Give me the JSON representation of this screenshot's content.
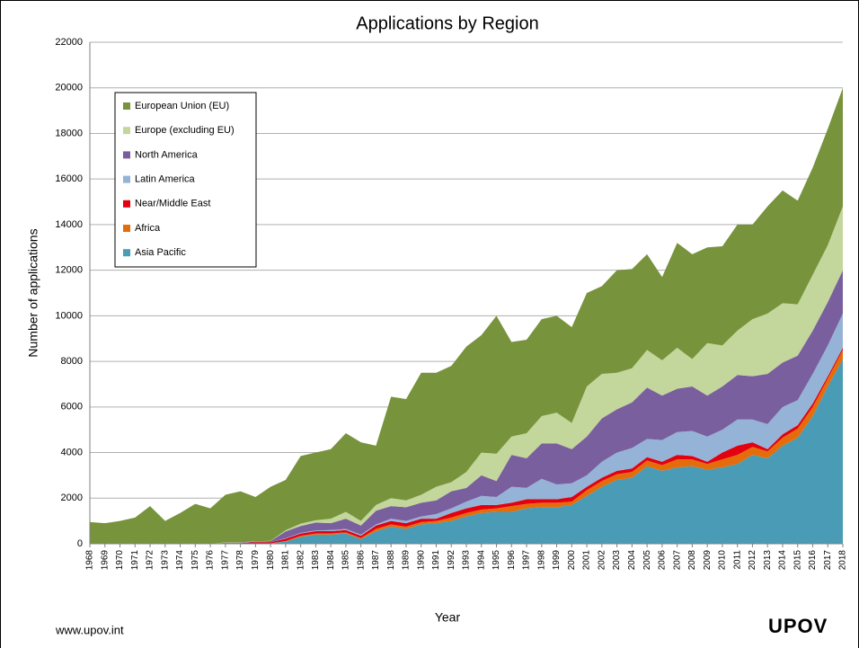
{
  "chart_data": {
    "type": "stacked_area",
    "title": "Applications by Region",
    "x_label": "Year",
    "y_label": "Number of applications",
    "x": [
      1968,
      1969,
      1970,
      1971,
      1972,
      1973,
      1974,
      1975,
      1976,
      1977,
      1978,
      1979,
      1980,
      1981,
      1982,
      1983,
      1984,
      1985,
      1986,
      1987,
      1988,
      1989,
      1990,
      1991,
      1992,
      1993,
      1994,
      1995,
      1996,
      1997,
      1998,
      1999,
      2000,
      2001,
      2002,
      2003,
      2004,
      2005,
      2006,
      2007,
      2008,
      2009,
      2010,
      2011,
      2012,
      2013,
      2014,
      2015,
      2016,
      2017,
      2018
    ],
    "xlim": [
      1968,
      2018
    ],
    "ylim": [
      0,
      22000
    ],
    "yticks": [
      0,
      2000,
      4000,
      6000,
      8000,
      10000,
      12000,
      14000,
      16000,
      18000,
      20000,
      22000
    ],
    "grid": true,
    "legend": "upper left",
    "series": [
      {
        "name": "Asia Pacific",
        "color": "#4a9bb5",
        "values": [
          0,
          0,
          0,
          0,
          0,
          0,
          0,
          0,
          0,
          20,
          20,
          20,
          20,
          100,
          300,
          400,
          400,
          450,
          200,
          550,
          750,
          650,
          850,
          900,
          1000,
          1200,
          1350,
          1400,
          1400,
          1550,
          1600,
          1600,
          1700,
          2100,
          2500,
          2800,
          2900,
          3400,
          3200,
          3350,
          3400,
          3250,
          3350,
          3500,
          3900,
          3750,
          4300,
          4650,
          5600,
          6900,
          8100
        ]
      },
      {
        "name": "Africa",
        "color": "#e46c0a",
        "values": [
          0,
          0,
          0,
          0,
          0,
          0,
          0,
          0,
          0,
          0,
          0,
          0,
          0,
          20,
          50,
          50,
          50,
          50,
          50,
          100,
          100,
          100,
          100,
          100,
          150,
          150,
          150,
          150,
          250,
          200,
          200,
          200,
          150,
          250,
          250,
          250,
          250,
          250,
          250,
          350,
          300,
          250,
          350,
          400,
          350,
          300,
          350,
          400,
          400,
          350,
          400
        ]
      },
      {
        "name": "Near/Middle East",
        "color": "#e3000f",
        "values": [
          0,
          0,
          0,
          0,
          0,
          0,
          0,
          0,
          0,
          10,
          10,
          50,
          50,
          100,
          100,
          100,
          100,
          100,
          100,
          150,
          150,
          150,
          150,
          100,
          200,
          200,
          200,
          150,
          150,
          200,
          150,
          150,
          200,
          150,
          150,
          150,
          150,
          150,
          150,
          200,
          150,
          100,
          300,
          400,
          200,
          100,
          150,
          150,
          150,
          100,
          100
        ]
      },
      {
        "name": "Latin America",
        "color": "#95b3d7",
        "values": [
          0,
          0,
          0,
          0,
          0,
          0,
          0,
          0,
          0,
          0,
          0,
          0,
          0,
          20,
          30,
          30,
          50,
          50,
          50,
          50,
          100,
          100,
          100,
          200,
          200,
          300,
          400,
          350,
          700,
          500,
          900,
          650,
          600,
          500,
          700,
          800,
          900,
          800,
          950,
          1000,
          1100,
          1100,
          1000,
          1150,
          1000,
          1100,
          1200,
          1100,
          1300,
          1350,
          1500
        ]
      },
      {
        "name": "North America",
        "color": "#7a5f9e",
        "values": [
          0,
          0,
          0,
          0,
          0,
          0,
          0,
          0,
          0,
          20,
          20,
          30,
          50,
          300,
          300,
          350,
          300,
          450,
          400,
          600,
          550,
          600,
          600,
          600,
          750,
          600,
          900,
          700,
          1400,
          1300,
          1550,
          1800,
          1500,
          1700,
          1900,
          1900,
          2000,
          2250,
          1950,
          1900,
          1950,
          1800,
          1900,
          1950,
          1900,
          2200,
          1950,
          1950,
          1900,
          1900,
          1900
        ]
      },
      {
        "name": "Europe (excluding EU)",
        "color": "#c3d69b",
        "values": [
          0,
          0,
          0,
          0,
          0,
          0,
          0,
          0,
          0,
          10,
          10,
          10,
          10,
          50,
          100,
          100,
          200,
          300,
          200,
          250,
          350,
          300,
          350,
          600,
          400,
          700,
          1000,
          1200,
          800,
          1100,
          1200,
          1350,
          1150,
          2200,
          1950,
          1600,
          1500,
          1650,
          1550,
          1800,
          1200,
          2300,
          1800,
          1950,
          2500,
          2650,
          2600,
          2250,
          2450,
          2500,
          2800
        ]
      },
      {
        "name": "European Union (EU)",
        "color": "#77933c",
        "values": [
          950,
          900,
          1000,
          1150,
          1650,
          1000,
          1350,
          1750,
          1550,
          2090,
          2240,
          1940,
          2370,
          2210,
          2970,
          2970,
          3050,
          3450,
          3450,
          2600,
          4450,
          4450,
          5350,
          5000,
          5100,
          5500,
          5150,
          6050,
          4150,
          4100,
          4250,
          4250,
          4200,
          4100,
          3850,
          4500,
          4350,
          4200,
          3650,
          4600,
          4600,
          4200,
          4350,
          4650,
          4150,
          4700,
          4950,
          4550,
          4700,
          5100,
          5200
        ]
      }
    ]
  },
  "footer": {
    "url": "www.upov.int",
    "logo": "UPOV"
  }
}
